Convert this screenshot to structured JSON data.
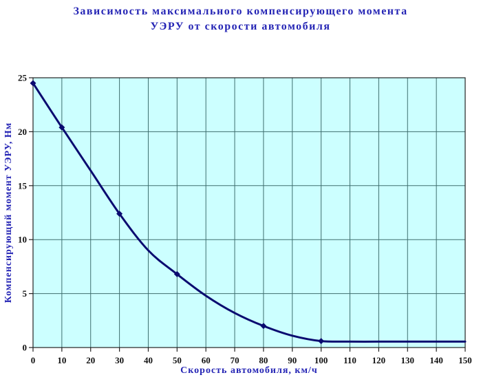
{
  "title": {
    "line1": "Зависимость максимального компенсирующего момента",
    "line2": "УЭРУ от скорости автомобиля"
  },
  "chart_data": {
    "type": "line",
    "title": "Зависимость максимального компенсирующего момента УЭРУ от скорости автомобиля",
    "xlabel": "Скорость автомобиля, км/ч",
    "ylabel": "Компенсирующий момент УЭРУ, Нм",
    "xlim": [
      0,
      150
    ],
    "ylim": [
      0,
      25
    ],
    "x_ticks": [
      0,
      10,
      20,
      30,
      40,
      50,
      60,
      70,
      80,
      90,
      100,
      110,
      120,
      130,
      140,
      150
    ],
    "y_ticks": [
      0,
      5,
      10,
      15,
      20,
      25
    ],
    "grid": true,
    "legend": false,
    "series": [
      {
        "name": "Компенсирующий момент УЭРУ",
        "x": [
          0,
          10,
          20,
          30,
          40,
          50,
          60,
          70,
          80,
          90,
          100,
          110,
          120,
          130,
          140,
          150
        ],
        "y": [
          24.5,
          20.4,
          16.4,
          12.4,
          9.0,
          6.8,
          4.8,
          3.2,
          2.0,
          1.1,
          0.6,
          0.55,
          0.55,
          0.55,
          0.55,
          0.55
        ]
      }
    ],
    "marker_points": [
      {
        "x": 0,
        "y": 24.5
      },
      {
        "x": 10,
        "y": 20.4
      },
      {
        "x": 30,
        "y": 12.4
      },
      {
        "x": 50,
        "y": 6.8
      },
      {
        "x": 80,
        "y": 2.0
      },
      {
        "x": 100,
        "y": 0.6
      }
    ],
    "colors": {
      "plot_background": "#ccffff",
      "outer_background": "#ffffff",
      "line": "#0a0a70",
      "marker": "#0a0a70",
      "grid": "#3e6e6e",
      "border": "#222222",
      "title_text": "#2525b5",
      "axis_title_text": "#2525b5",
      "tick_text": "#111111"
    }
  }
}
